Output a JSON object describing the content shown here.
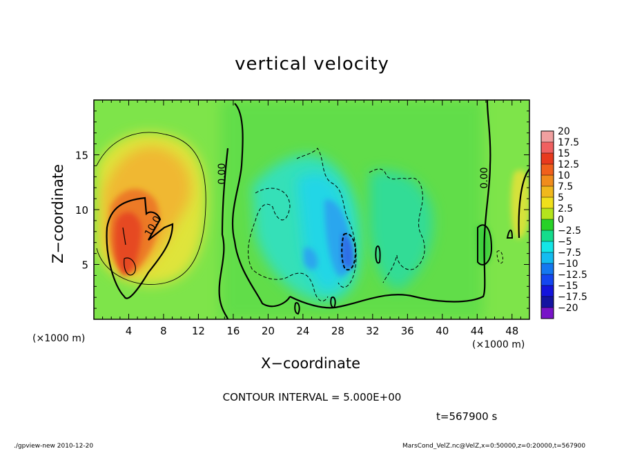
{
  "title": "vertical velocity",
  "xlabel": "X−coordinate",
  "ylabel": "Z−coordinate",
  "x_unit_left": "(×1000 m)",
  "x_unit_right": "(×1000 m)",
  "contour_interval": "CONTOUR INTERVAL = 5.000E+00",
  "time_label": "t=567900 s",
  "footer_left": "./gpview-new  2010-12-20",
  "footer_right": "MarsCond_VelZ.nc@VelZ,x=0:50000,z=0:20000,t=567900",
  "chart_data": {
    "type": "heatmap",
    "title": "vertical velocity",
    "xlabel": "X−coordinate",
    "ylabel": "Z−coordinate",
    "xlim": [
      0,
      50
    ],
    "ylim": [
      0,
      20
    ],
    "x_ticks": [
      "4",
      "8",
      "12",
      "16",
      "20",
      "24",
      "28",
      "32",
      "36",
      "40",
      "44",
      "48"
    ],
    "y_ticks": [
      "5",
      "10",
      "15"
    ],
    "colorbar": {
      "labels": [
        "20",
        "17.5",
        "15",
        "12.5",
        "10",
        "7.5",
        "5",
        "2.5",
        "0",
        "−2.5",
        "−5",
        "−7.5",
        "−10",
        "−12.5",
        "−15",
        "−17.5",
        "−20"
      ],
      "colors": [
        "#f0a0a0",
        "#f06060",
        "#e83a1e",
        "#f0601c",
        "#f08c1c",
        "#f0b81c",
        "#f0e01c",
        "#b4e41c",
        "#28d228",
        "#14dc8c",
        "#14e6e6",
        "#14bcf0",
        "#1478f0",
        "#1446f0",
        "#1414dc",
        "#1414a0",
        "#7814c8"
      ]
    },
    "contour_labels": [
      "10.0",
      "0.00",
      "0.00"
    ],
    "regions": [
      {
        "name": "updraft-core",
        "x": 5,
        "z": 7,
        "value": 15
      },
      {
        "name": "updraft-shell",
        "x": 7,
        "z": 11,
        "value": 7.5
      },
      {
        "name": "downdraft-core",
        "x": 29,
        "z": 5.5,
        "value": -7.5
      },
      {
        "name": "downdraft-left",
        "x": 25,
        "z": 6,
        "value": -5
      },
      {
        "name": "updraft-right-edge",
        "x": 49.5,
        "z": 12,
        "value": 5
      }
    ]
  }
}
